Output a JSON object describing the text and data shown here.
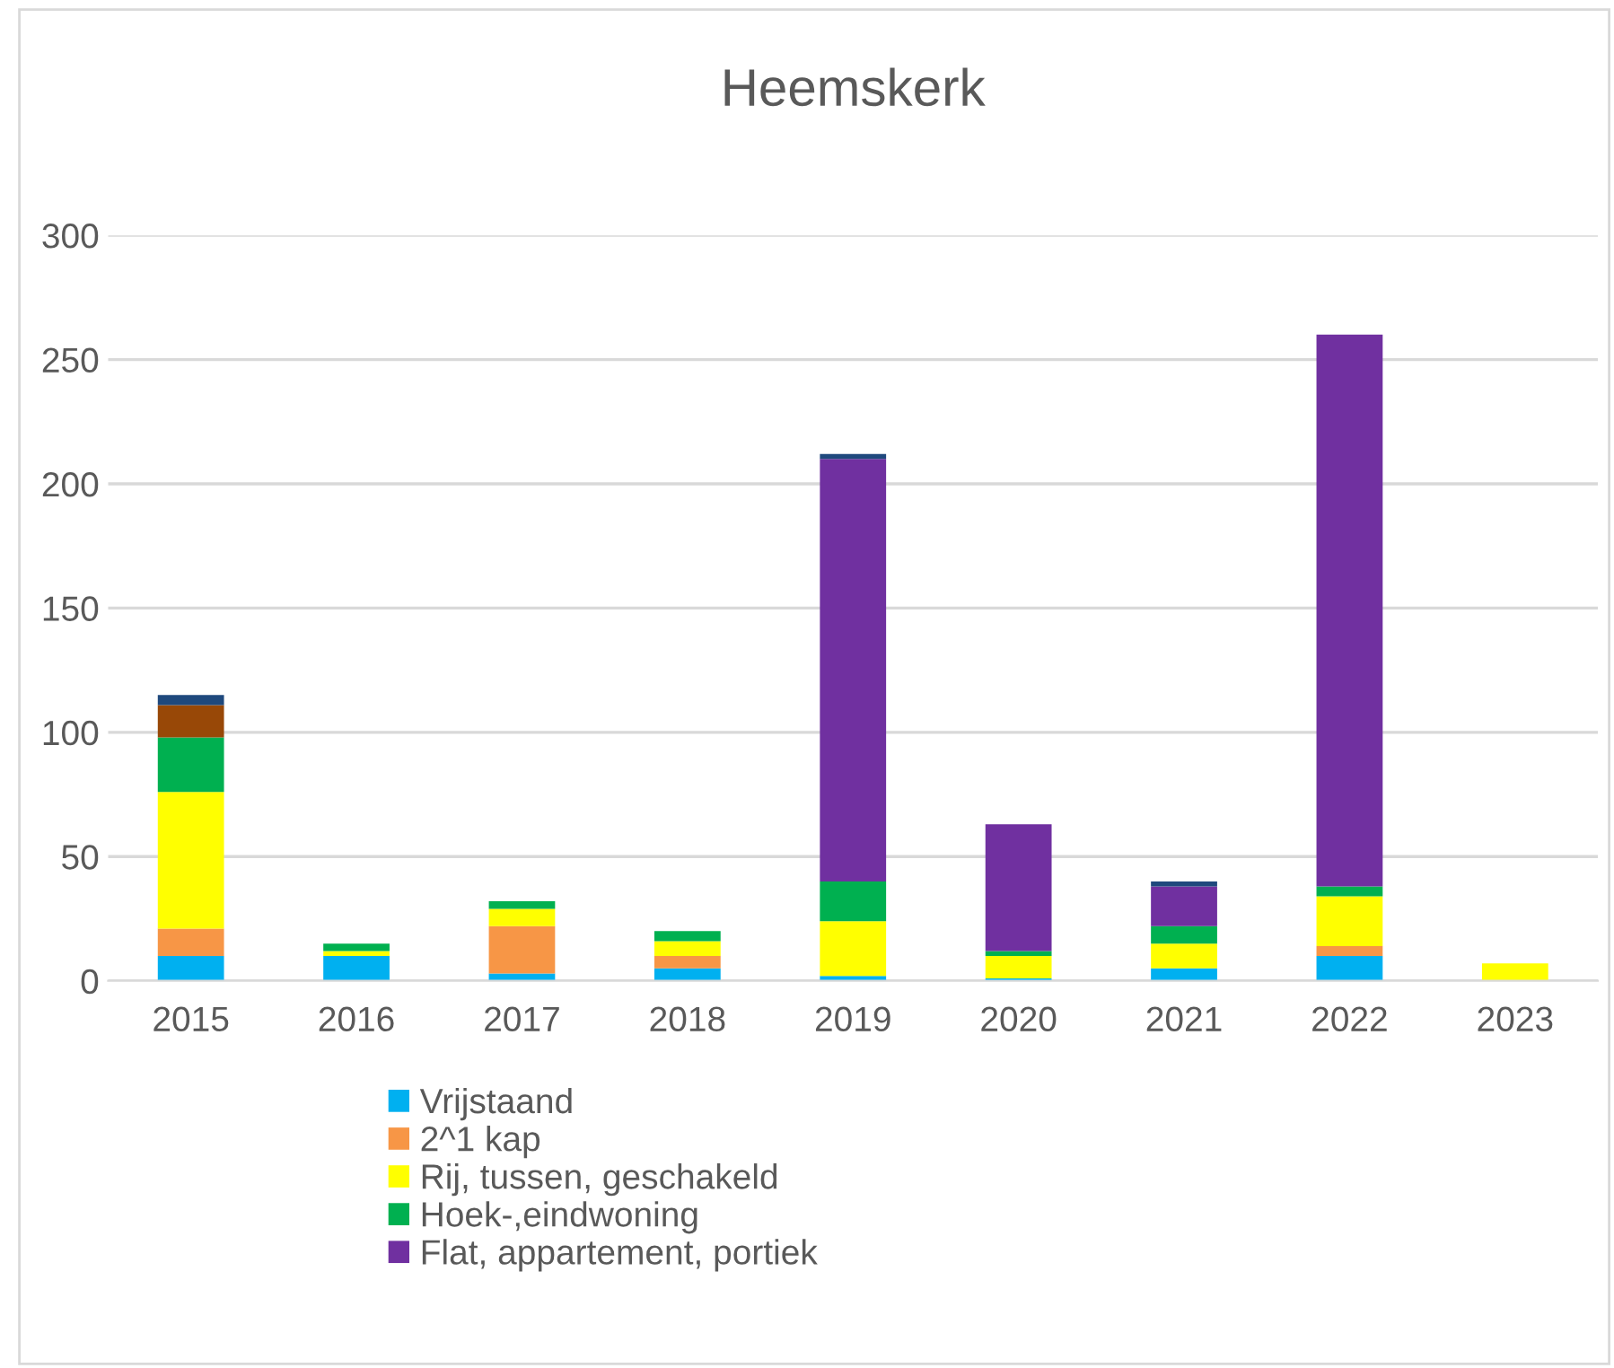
{
  "chart_data": {
    "type": "bar",
    "title": "Heemskerk",
    "stacked": true,
    "categories": [
      "2015",
      "2016",
      "2017",
      "2018",
      "2019",
      "2020",
      "2021",
      "2022",
      "2023"
    ],
    "series": [
      {
        "name": "Vrijstaand",
        "color": "#00b0f0",
        "values": [
          10,
          10,
          3,
          5,
          2,
          1,
          5,
          10,
          0
        ]
      },
      {
        "name": "2^1 kap",
        "color": "#f79646",
        "values": [
          11,
          0,
          19,
          5,
          0,
          0,
          0,
          4,
          0
        ]
      },
      {
        "name": "Rij, tussen, geschakeld",
        "color": "#ffff00",
        "values": [
          55,
          2,
          7,
          6,
          22,
          9,
          10,
          20,
          7
        ]
      },
      {
        "name": "Hoek-,eindwoning",
        "color": "#00b050",
        "values": [
          22,
          3,
          3,
          4,
          16,
          2,
          7,
          4,
          0
        ]
      },
      {
        "name": "Flat, appartement, portiek",
        "color": "#7030a0",
        "values": [
          0,
          0,
          0,
          0,
          170,
          51,
          16,
          222,
          0
        ]
      },
      {
        "color": "#984807",
        "values": [
          13,
          0,
          0,
          0,
          0,
          0,
          0,
          0,
          0
        ]
      },
      {
        "color": "#1f497d",
        "values": [
          4,
          0,
          0,
          0,
          2,
          0,
          2,
          0,
          0
        ]
      }
    ],
    "ylim": [
      0,
      300
    ],
    "yticks": [
      0,
      50,
      100,
      150,
      200,
      250,
      300
    ],
    "grid": "y",
    "legend": "bottom"
  }
}
